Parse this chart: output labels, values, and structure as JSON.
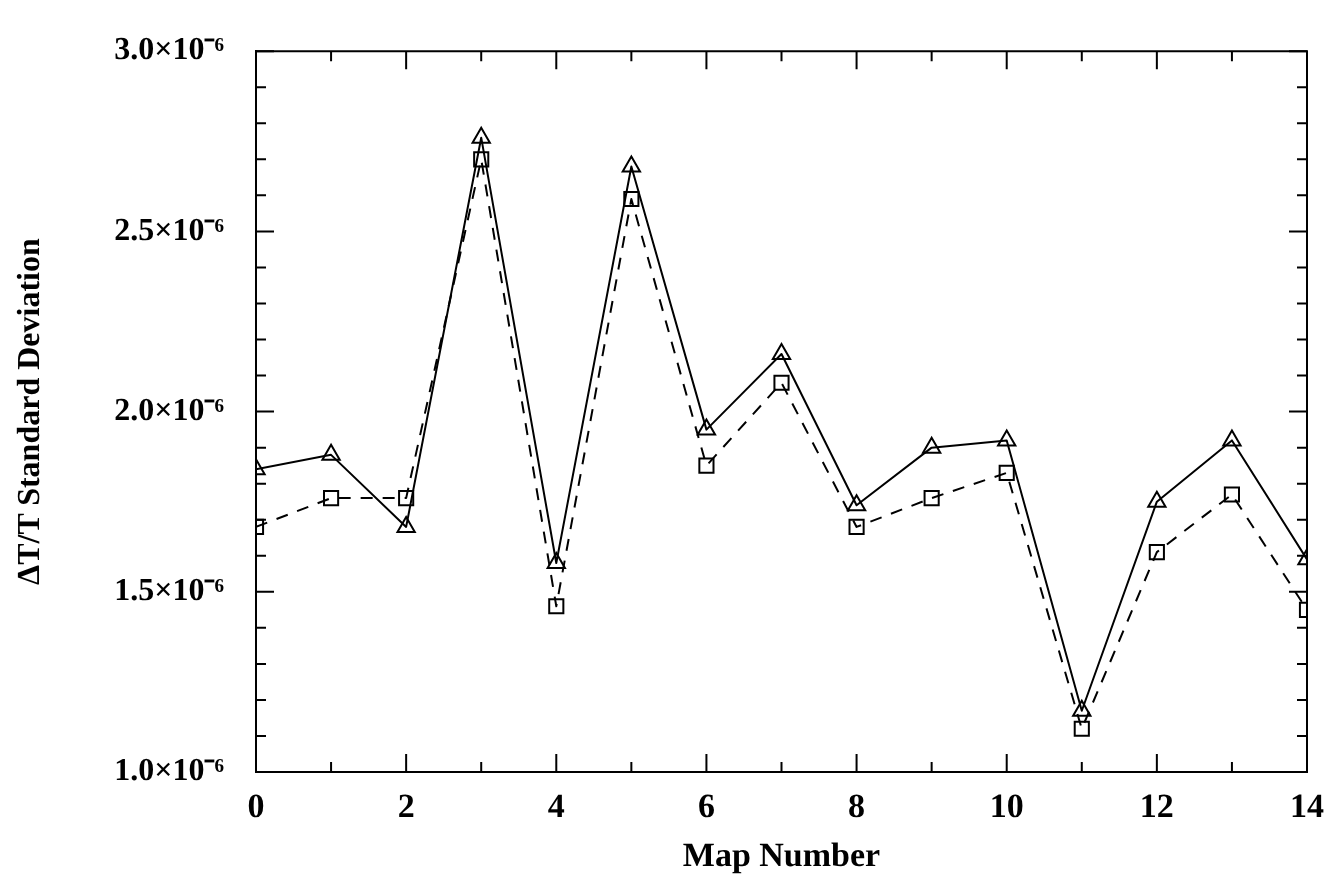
{
  "chart_data": {
    "type": "line",
    "xlabel": "Map Number",
    "ylabel": "ΔT/T Standard Deviation",
    "x": [
      0,
      1,
      2,
      3,
      4,
      5,
      6,
      7,
      8,
      9,
      10,
      11,
      12,
      13,
      14
    ],
    "series": [
      {
        "color": "#000000",
        "marker": "triangle",
        "line_style": "solid",
        "values": [
          1.84e-06,
          1.88e-06,
          1.68e-06,
          2.76e-06,
          1.58e-06,
          2.68e-06,
          1.95e-06,
          2.16e-06,
          1.74e-06,
          1.9e-06,
          1.92e-06,
          1.17e-06,
          1.75e-06,
          1.92e-06,
          1.59e-06
        ]
      },
      {
        "color": "#000000",
        "marker": "square",
        "line_style": "dashed",
        "values": [
          1.68e-06,
          1.76e-06,
          1.76e-06,
          2.7e-06,
          1.46e-06,
          2.59e-06,
          1.85e-06,
          2.08e-06,
          1.68e-06,
          1.76e-06,
          1.83e-06,
          1.12e-06,
          1.61e-06,
          1.77e-06,
          1.45e-06
        ]
      }
    ],
    "xlim": [
      0,
      14
    ],
    "xticks": [
      0,
      {
        "value": 1,
        "label": null
      },
      2,
      {
        "value": 3,
        "label": null
      },
      4,
      {
        "value": 5,
        "label": null
      },
      6,
      {
        "value": 7,
        "label": null
      },
      8,
      {
        "value": 9,
        "label": null
      },
      10,
      {
        "value": 11,
        "label": null
      },
      12,
      {
        "value": 13,
        "label": null
      },
      14
    ],
    "ylim": [
      1e-06,
      3e-06
    ],
    "yticks": [
      {
        "value": 1e-06,
        "label": "1.0×10⁻⁶"
      },
      {
        "value": 1.1e-06,
        "label": null
      },
      {
        "value": 1.2e-06,
        "label": null
      },
      {
        "value": 1.3e-06,
        "label": null
      },
      {
        "value": 1.4e-06,
        "label": null
      },
      {
        "value": 1.5e-06,
        "label": "1.5×10⁻⁶"
      },
      {
        "value": 1.6e-06,
        "label": null
      },
      {
        "value": 1.7e-06,
        "label": null
      },
      {
        "value": 1.8e-06,
        "label": null
      },
      {
        "value": 1.9e-06,
        "label": null
      },
      {
        "value": 2e-06,
        "label": "2.0×10⁻⁶"
      },
      {
        "value": 2.1e-06,
        "label": null
      },
      {
        "value": 2.2e-06,
        "label": null
      },
      {
        "value": 2.3e-06,
        "label": null
      },
      {
        "value": 2.4e-06,
        "label": null
      },
      {
        "value": 2.5e-06,
        "label": "2.5×10⁻⁶"
      },
      {
        "value": 2.6e-06,
        "label": null
      },
      {
        "value": 2.7e-06,
        "label": null
      },
      {
        "value": 2.8e-06,
        "label": null
      },
      {
        "value": 2.9e-06,
        "label": null
      },
      {
        "value": 3e-06,
        "label": "3.0×10⁻⁶"
      }
    ],
    "grid": false,
    "legend": false
  }
}
